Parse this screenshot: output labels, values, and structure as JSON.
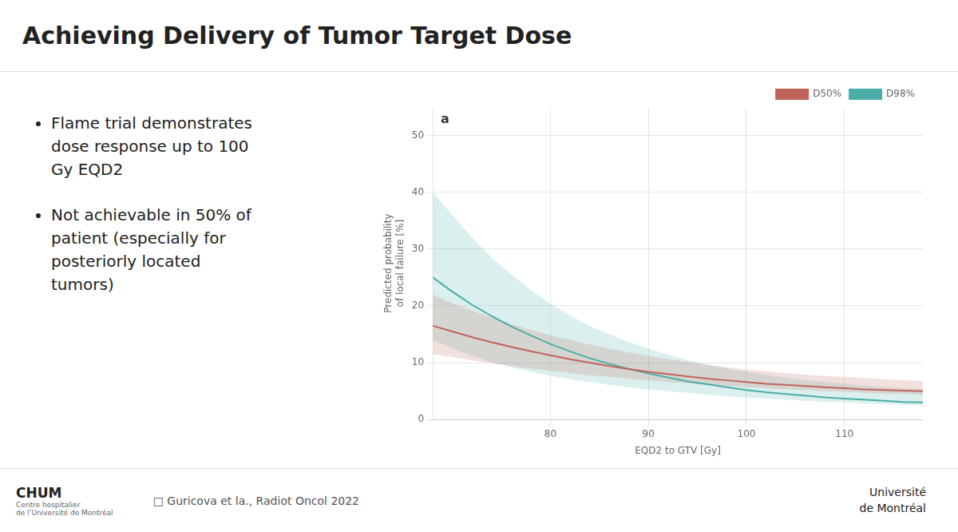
{
  "chart_data": {
    "type": "line",
    "title": "Achieving Delivery of Tumor Target Dose",
    "xlabel": "EQD2 to GTV [Gy]",
    "ylabel": "Predicted probability\nof local failure [%]",
    "x": [
      68,
      70,
      72,
      74,
      76,
      78,
      80,
      82,
      84,
      86,
      88,
      90,
      92,
      94,
      96,
      98,
      100,
      102,
      104,
      106,
      108,
      110,
      112,
      114,
      116,
      118
    ],
    "series": [
      {
        "name": "D50%",
        "color": "#c0645a",
        "values": [
          16.5,
          15.5,
          14.5,
          13.6,
          12.8,
          12.0,
          11.3,
          10.6,
          10.0,
          9.4,
          8.9,
          8.4,
          8.0,
          7.6,
          7.2,
          6.9,
          6.6,
          6.3,
          6.1,
          5.9,
          5.7,
          5.5,
          5.3,
          5.2,
          5.1,
          5.0
        ],
        "ci_lower": [
          11.5,
          11.0,
          10.4,
          9.9,
          9.4,
          9.0,
          8.6,
          8.2,
          7.8,
          7.5,
          7.2,
          6.9,
          6.6,
          6.4,
          6.1,
          5.9,
          5.7,
          5.5,
          5.3,
          5.2,
          5.0,
          4.9,
          4.7,
          4.6,
          4.5,
          4.4
        ],
        "ci_upper": [
          22.0,
          20.5,
          19.2,
          18.0,
          16.8,
          15.8,
          14.8,
          14.0,
          13.2,
          12.5,
          11.8,
          11.2,
          10.6,
          10.1,
          9.6,
          9.2,
          8.8,
          8.5,
          8.2,
          7.9,
          7.7,
          7.5,
          7.3,
          7.1,
          6.9,
          6.8
        ]
      },
      {
        "name": "D98%",
        "color": "#4aada8",
        "values": [
          25.0,
          22.5,
          20.2,
          18.2,
          16.4,
          14.8,
          13.3,
          12.0,
          10.8,
          9.8,
          8.9,
          8.1,
          7.4,
          6.7,
          6.2,
          5.7,
          5.2,
          4.8,
          4.5,
          4.2,
          3.9,
          3.7,
          3.5,
          3.3,
          3.1,
          3.0
        ],
        "ci_lower": [
          14.0,
          12.5,
          11.2,
          10.1,
          9.2,
          8.4,
          7.7,
          7.1,
          6.6,
          6.1,
          5.7,
          5.3,
          5.0,
          4.7,
          4.4,
          4.1,
          3.9,
          3.7,
          3.5,
          3.3,
          3.1,
          3.0,
          2.8,
          2.7,
          2.6,
          2.5
        ],
        "ci_upper": [
          40.0,
          36.0,
          32.0,
          28.5,
          25.5,
          22.8,
          20.4,
          18.3,
          16.5,
          15.0,
          13.6,
          12.5,
          11.4,
          10.5,
          9.7,
          9.0,
          8.4,
          7.9,
          7.4,
          7.0,
          6.6,
          6.3,
          6.0,
          5.7,
          5.5,
          5.3
        ]
      }
    ],
    "xlim": [
      68,
      118
    ],
    "xticks": [
      80,
      90,
      100,
      110
    ],
    "ylim": [
      0,
      55
    ],
    "yticks": [
      0,
      10,
      20,
      30,
      40,
      50
    ],
    "grid": true,
    "legend": "upper right",
    "annotations": [
      "a",
      "Flame trial demonstrates\ndose response up to 100\nGy EQD2",
      "Not achievable in 50% of\npatient (especially for\nposteriorly located\ntumors)",
      "CHUM",
      "Centre hospitalier\nde l’Université de Montréal",
      "□ Guricova et la., Radiot Oncol 2022",
      "Université\nde Montréal"
    ]
  }
}
